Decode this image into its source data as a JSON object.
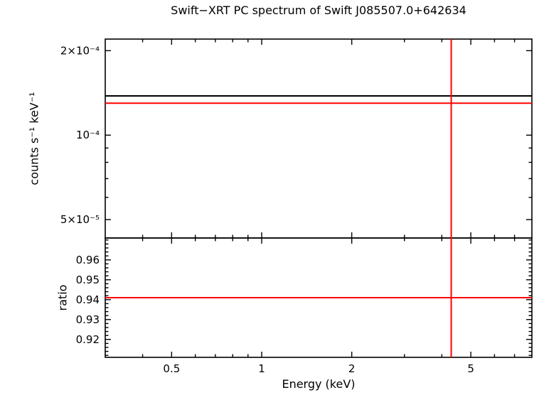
{
  "chart_data": {
    "type": "line",
    "title": "Swift−XRT PC spectrum of Swift J085507.0+642634",
    "xlabel": "Energy (keV)",
    "x_scale": "log",
    "xlim": [
      0.3,
      8.0
    ],
    "x_ticks": [
      {
        "v": 0.5,
        "label": "0.5"
      },
      {
        "v": 1,
        "label": "1"
      },
      {
        "v": 2,
        "label": "2"
      },
      {
        "v": 5,
        "label": "5"
      }
    ],
    "x_minor_ticks": [
      0.4,
      0.6,
      0.7,
      0.8,
      0.9,
      3,
      4,
      6,
      7
    ],
    "colors": {
      "frame": "#000000",
      "data": "#000000",
      "model": "#ff0000",
      "background": "#ffffff"
    },
    "panels": [
      {
        "name": "spectrum",
        "ylabel": "counts s⁻¹ keV⁻¹",
        "y_scale": "log",
        "ylim": [
          4.3e-05,
          0.00022
        ],
        "y_ticks": [
          {
            "v": 0.0002,
            "label": "2×10⁻⁴"
          },
          {
            "v": 0.0001,
            "label": "10⁻⁴"
          },
          {
            "v": 5e-05,
            "label": "5×10⁻⁵"
          }
        ],
        "y_minor_ticks": [
          6e-05,
          7e-05,
          8e-05,
          9e-05
        ],
        "lines": [
          {
            "name": "data-level",
            "orient": "h",
            "y": 0.000138,
            "color": "#000000"
          },
          {
            "name": "model-level",
            "orient": "h",
            "y": 0.00013,
            "color": "#ff0000"
          }
        ]
      },
      {
        "name": "ratio",
        "ylabel": "ratio",
        "y_scale": "linear",
        "ylim": [
          0.911,
          0.971
        ],
        "y_ticks": [
          {
            "v": 0.92,
            "label": "0.92"
          },
          {
            "v": 0.93,
            "label": "0.93"
          },
          {
            "v": 0.94,
            "label": "0.94"
          },
          {
            "v": 0.95,
            "label": "0.95"
          },
          {
            "v": 0.96,
            "label": "0.96"
          }
        ],
        "y_minor_step": 0.002,
        "lines": [
          {
            "name": "ratio-level",
            "orient": "h",
            "y": 0.941,
            "color": "#ff0000"
          }
        ]
      }
    ],
    "vlines": [
      {
        "name": "bin-edge",
        "x": 4.3,
        "color": "#ff0000"
      }
    ]
  }
}
